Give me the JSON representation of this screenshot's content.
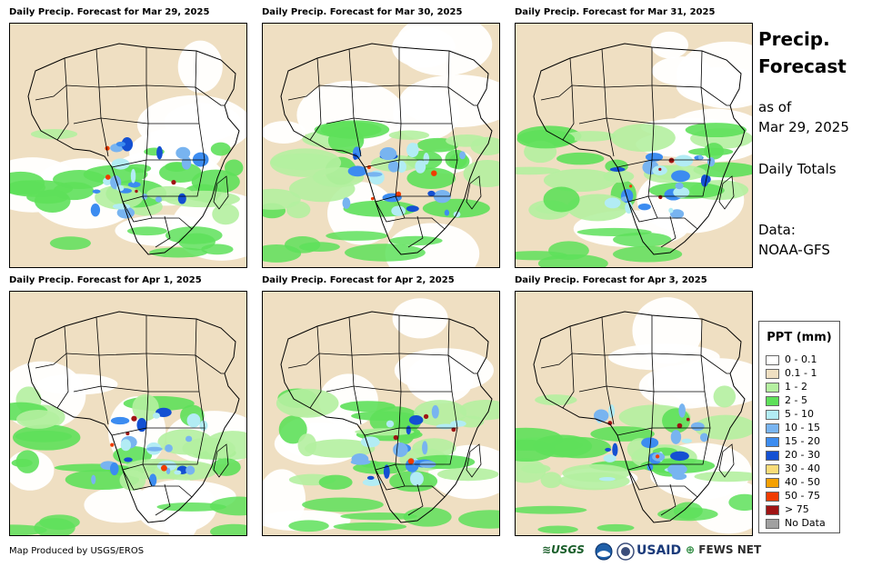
{
  "panels": [
    {
      "title": "Daily Precip. Forecast for Mar 29, 2025"
    },
    {
      "title": "Daily Precip. Forecast for Mar 30, 2025"
    },
    {
      "title": "Daily Precip. Forecast for Mar 31, 2025"
    },
    {
      "title": "Daily Precip. Forecast for Apr 1, 2025"
    },
    {
      "title": "Daily Precip. Forecast for Apr 2, 2025"
    },
    {
      "title": "Daily Precip. Forecast for Apr 3, 2025"
    }
  ],
  "side": {
    "title_line1": "Precip.",
    "title_line2": "Forecast",
    "asof_line1": "as of",
    "asof_line2": "Mar 29, 2025",
    "totals": "Daily Totals",
    "data_line1": "Data:",
    "data_line2": "NOAA-GFS"
  },
  "legend": {
    "title": "PPT (mm)",
    "items": [
      {
        "label": "0 - 0.1",
        "color": "#ffffff"
      },
      {
        "label": "0.1 - 1",
        "color": "#efdfc2"
      },
      {
        "label": "1 - 2",
        "color": "#b4f0a0"
      },
      {
        "label": "2 - 5",
        "color": "#5ee05a"
      },
      {
        "label": "5 - 10",
        "color": "#b2ecf4"
      },
      {
        "label": "10 - 15",
        "color": "#78b4f0"
      },
      {
        "label": "15 - 20",
        "color": "#3c8cf0"
      },
      {
        "label": "20 - 30",
        "color": "#1450d2"
      },
      {
        "label": "30 - 40",
        "color": "#fadc78"
      },
      {
        "label": "40 - 50",
        "color": "#f5a000"
      },
      {
        "label": "50 - 75",
        "color": "#f03c00"
      },
      {
        "label": "> 75",
        "color": "#a01414"
      },
      {
        "label": "No Data",
        "color": "#a0a0a0"
      }
    ]
  },
  "footer": {
    "produced_by": "Map Produced by USGS/EROS",
    "logo_usgs": "USGS",
    "logo_usaid": "USAID",
    "logo_fewsnet": "FEWS NET"
  }
}
